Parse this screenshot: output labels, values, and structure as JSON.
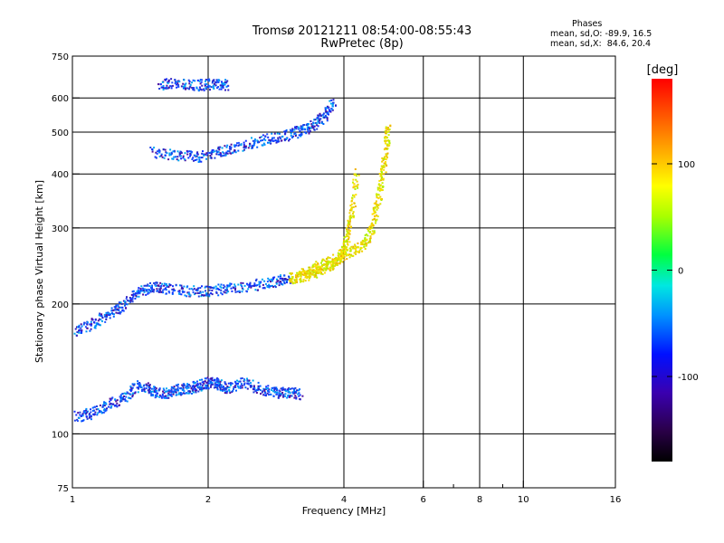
{
  "header": {
    "title_line1": "Tromsø 20121211 08:54:00-08:55:43",
    "title_line2": "RwPretec (8p)"
  },
  "phases_note": {
    "heading": "Phases",
    "line_o": "mean, sd,O: -89.9, 16.5",
    "line_x": "mean, sd,X:  84.6, 20.4"
  },
  "colorbar": {
    "unit_label": "[deg]",
    "ticks": [
      {
        "value": 100,
        "label": "100"
      },
      {
        "value": 0,
        "label": "0"
      },
      {
        "value": -100,
        "label": "-100"
      }
    ],
    "range": [
      -180,
      180
    ]
  },
  "chart_data": {
    "type": "scatter",
    "title": "Tromsø 20121211 08:54:00-08:55:43",
    "subtitle": "RwPretec (8p)",
    "xlabel": "Frequency [MHz]",
    "ylabel": "Stationary phase Virtual Height [km]",
    "x_scale": "log",
    "y_scale": "log",
    "xlim": [
      1,
      16
    ],
    "ylim": [
      75,
      750
    ],
    "x_ticks": [
      {
        "value": 1,
        "label": "1"
      },
      {
        "value": 2,
        "label": "2"
      },
      {
        "value": 4,
        "label": "4"
      },
      {
        "value": 6,
        "label": "6"
      },
      {
        "value": 8,
        "label": "8"
      },
      {
        "value": 10,
        "label": "10"
      },
      {
        "value": 16,
        "label": "16"
      }
    ],
    "x_minor_ticks": [
      7,
      9
    ],
    "x_gridlines": [
      2,
      4,
      6,
      8,
      10
    ],
    "y_ticks": [
      {
        "value": 75,
        "label": "75"
      },
      {
        "value": 100,
        "label": "100"
      },
      {
        "value": 200,
        "label": "200"
      },
      {
        "value": 300,
        "label": "300"
      },
      {
        "value": 400,
        "label": "400"
      },
      {
        "value": 500,
        "label": "500"
      },
      {
        "value": 600,
        "label": "600"
      },
      {
        "value": 750,
        "label": "750"
      }
    ],
    "y_gridlines": [
      100,
      200,
      300,
      400,
      500,
      600
    ],
    "grid": true,
    "color_dimension": "phase (deg)",
    "traces": [
      {
        "description": "E-layer echoes",
        "points": [
          [
            1.02,
            110
          ],
          [
            1.1,
            112
          ],
          [
            1.2,
            117
          ],
          [
            1.3,
            122
          ],
          [
            1.4,
            130
          ],
          [
            1.5,
            126
          ],
          [
            1.6,
            124
          ],
          [
            1.7,
            127
          ],
          [
            1.8,
            128
          ],
          [
            1.9,
            130
          ],
          [
            2.0,
            132
          ],
          [
            2.1,
            131
          ],
          [
            2.2,
            128
          ],
          [
            2.4,
            132
          ],
          [
            2.6,
            128
          ],
          [
            2.8,
            125
          ],
          [
            3.0,
            125
          ],
          [
            3.2,
            124
          ]
        ]
      },
      {
        "description": "F-layer O-mode trace",
        "points": [
          [
            1.0,
            173
          ],
          [
            1.1,
            180
          ],
          [
            1.2,
            190
          ],
          [
            1.3,
            200
          ],
          [
            1.4,
            215
          ],
          [
            1.5,
            220
          ],
          [
            1.6,
            218
          ],
          [
            1.8,
            215
          ],
          [
            2.0,
            215
          ],
          [
            2.2,
            218
          ],
          [
            2.5,
            221
          ],
          [
            2.8,
            226
          ],
          [
            3.0,
            230
          ],
          [
            3.2,
            232
          ],
          [
            3.4,
            236
          ],
          [
            3.6,
            242
          ],
          [
            3.8,
            250
          ],
          [
            3.95,
            262
          ],
          [
            4.05,
            285
          ],
          [
            4.15,
            330
          ],
          [
            4.25,
            410
          ]
        ]
      },
      {
        "description": "F-layer X-mode trace",
        "points": [
          [
            3.2,
            235
          ],
          [
            3.5,
            245
          ],
          [
            3.8,
            255
          ],
          [
            4.1,
            265
          ],
          [
            4.4,
            275
          ],
          [
            4.6,
            300
          ],
          [
            4.75,
            350
          ],
          [
            4.85,
            400
          ],
          [
            4.95,
            460
          ],
          [
            5.0,
            520
          ]
        ]
      },
      {
        "description": "Second-hop echoes",
        "points": [
          [
            1.5,
            450
          ],
          [
            1.7,
            445
          ],
          [
            1.9,
            440
          ],
          [
            2.1,
            450
          ],
          [
            2.3,
            462
          ],
          [
            2.6,
            478
          ],
          [
            2.9,
            490
          ],
          [
            3.2,
            505
          ],
          [
            3.4,
            520
          ],
          [
            3.6,
            545
          ],
          [
            3.8,
            590
          ]
        ]
      },
      {
        "description": "Upper echoes",
        "points": [
          [
            1.55,
            648
          ],
          [
            1.7,
            650
          ],
          [
            1.9,
            645
          ],
          [
            2.05,
            648
          ],
          [
            2.2,
            646
          ]
        ]
      }
    ]
  }
}
